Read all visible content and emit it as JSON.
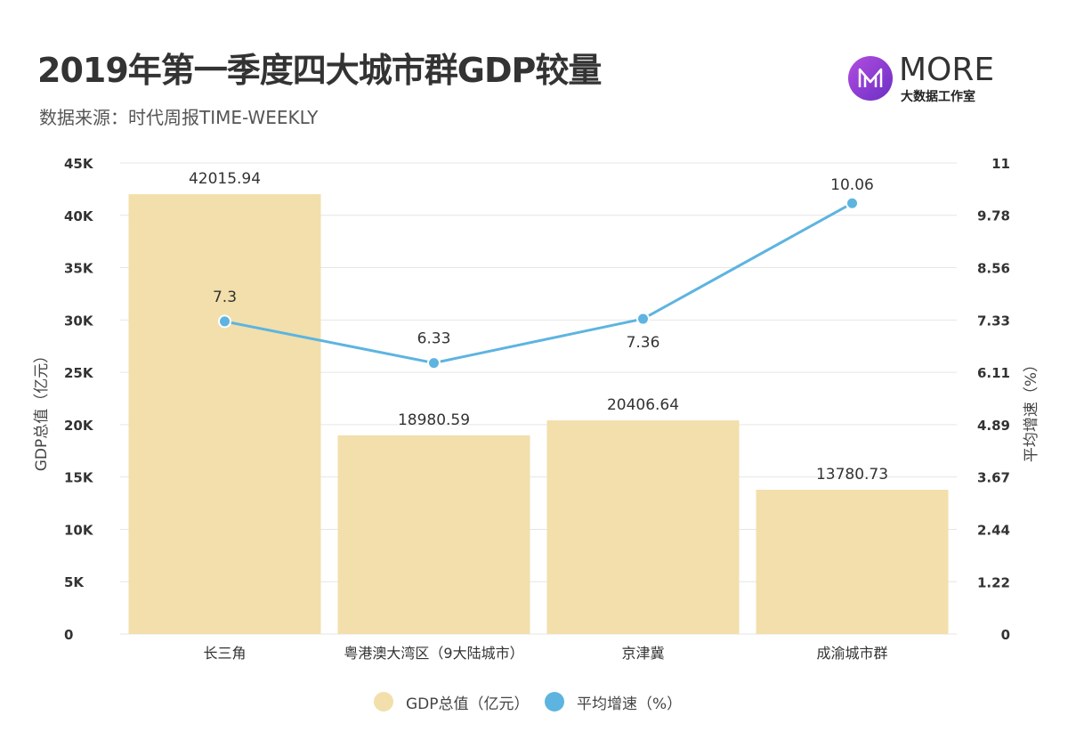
{
  "header": {
    "title": "2019年第一季度四大城市群GDP较量",
    "subtitle": "数据来源：时代周报TIME-WEEKLY"
  },
  "logo": {
    "text": "MORE",
    "subtext": "大数据工作室"
  },
  "colors": {
    "bar": "#f2dfab",
    "line": "#5db4e0",
    "grid": "#e6e6e6",
    "axis_text": "#333333"
  },
  "chart_data": {
    "type": "bar",
    "categories": [
      "长三角",
      "粤港澳大湾区（9大陆城市）",
      "京津冀",
      "成渝城市群"
    ],
    "series": [
      {
        "name": "GDP总值（亿元）",
        "type": "bar",
        "axis": "left",
        "values": [
          42015.94,
          18980.59,
          20406.64,
          13780.73
        ],
        "labels": [
          "42015.94",
          "18980.59",
          "20406.64",
          "13780.73"
        ]
      },
      {
        "name": "平均增速（%）",
        "type": "line",
        "axis": "right",
        "values": [
          7.3,
          6.33,
          7.36,
          10.06
        ],
        "labels": [
          "7.3",
          "6.33",
          "7.36",
          "10.06"
        ]
      }
    ],
    "y_left": {
      "label": "GDP总值（亿元）",
      "range": [
        0,
        45000
      ],
      "ticks": [
        0,
        5000,
        10000,
        15000,
        20000,
        25000,
        30000,
        35000,
        40000,
        45000
      ],
      "tick_labels": [
        "0",
        "5K",
        "10K",
        "15K",
        "20K",
        "25K",
        "30K",
        "35K",
        "40K",
        "45K"
      ]
    },
    "y_right": {
      "label": "平均增速（%）",
      "range": [
        0,
        11
      ],
      "ticks": [
        0,
        1.22,
        2.44,
        3.67,
        4.89,
        6.11,
        7.33,
        8.56,
        9.78,
        11
      ],
      "tick_labels": [
        "0",
        "1.22",
        "2.44",
        "3.67",
        "4.89",
        "6.11",
        "7.33",
        "8.56",
        "9.78",
        "11"
      ]
    },
    "grid": true,
    "legend_position": "bottom"
  }
}
